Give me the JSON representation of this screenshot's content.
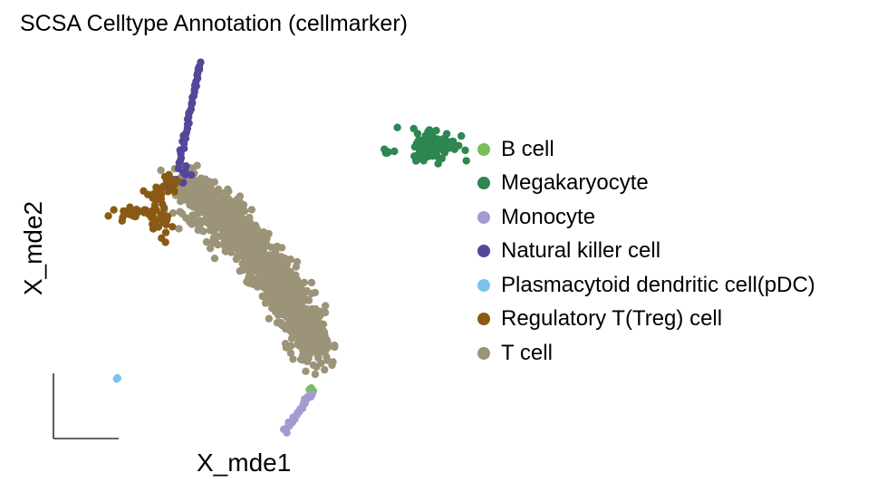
{
  "chart_data": {
    "type": "scatter",
    "title": "SCSA Celltype Annotation (cellmarker)",
    "xlabel": "X_mde1",
    "ylabel": "X_mde2",
    "axes_style": "short arrows-free corner axes at bottom-left, no ticks",
    "grid": false,
    "legend_position": "right",
    "xlim": [
      -1.0,
      1.0
    ],
    "ylim": [
      -1.0,
      1.0
    ],
    "series": [
      {
        "name": "B cell",
        "color": "#7BBD5A",
        "clusters": [
          {
            "x": 0.42,
            "y": -0.78,
            "sx": 0.01,
            "sy": 0.008,
            "n": 6
          }
        ]
      },
      {
        "name": "Megakaryocyte",
        "color": "#2E8650",
        "clusters": [
          {
            "x": 1.2,
            "y": 0.48,
            "sx": 0.07,
            "sy": 0.04,
            "n": 110
          },
          {
            "x": 0.9,
            "y": 0.44,
            "sx": 0.02,
            "sy": 0.01,
            "n": 6
          }
        ]
      },
      {
        "name": "Monocyte",
        "color": "#A49BD2",
        "line": {
          "x0": 0.25,
          "y0": -1.0,
          "x1": 0.42,
          "y1": -0.8,
          "n": 30
        }
      },
      {
        "name": "Natural killer cell",
        "color": "#55469A",
        "line": {
          "x0": -0.42,
          "y0": 0.35,
          "x1": -0.28,
          "y1": 0.9,
          "n": 40
        },
        "clusters": [
          {
            "x": -0.42,
            "y": 0.32,
            "sx": 0.04,
            "sy": 0.03,
            "n": 12
          }
        ]
      },
      {
        "name": "Plasmacytoid dendritic cell(pDC)",
        "color": "#7CC3EB",
        "clusters": [
          {
            "x": -0.8,
            "y": -0.72,
            "sx": 0.004,
            "sy": 0.004,
            "n": 3
          }
        ]
      },
      {
        "name": "Regulatory T(Treg) cell",
        "color": "#8A5A14",
        "clusters": [
          {
            "x": -0.72,
            "y": 0.13,
            "sx": 0.05,
            "sy": 0.015,
            "n": 25
          },
          {
            "x": -0.54,
            "y": 0.13,
            "sx": 0.04,
            "sy": 0.07,
            "n": 40
          },
          {
            "x": -0.48,
            "y": 0.28,
            "sx": 0.03,
            "sy": 0.03,
            "n": 12
          }
        ]
      },
      {
        "name": "T cell",
        "color": "#9C9479",
        "arc": {
          "x0": -0.38,
          "y0": 0.26,
          "xm": 0.12,
          "ym": -0.02,
          "x1": 0.46,
          "y1": -0.58,
          "width": 0.1,
          "n": 1400
        }
      }
    ]
  }
}
